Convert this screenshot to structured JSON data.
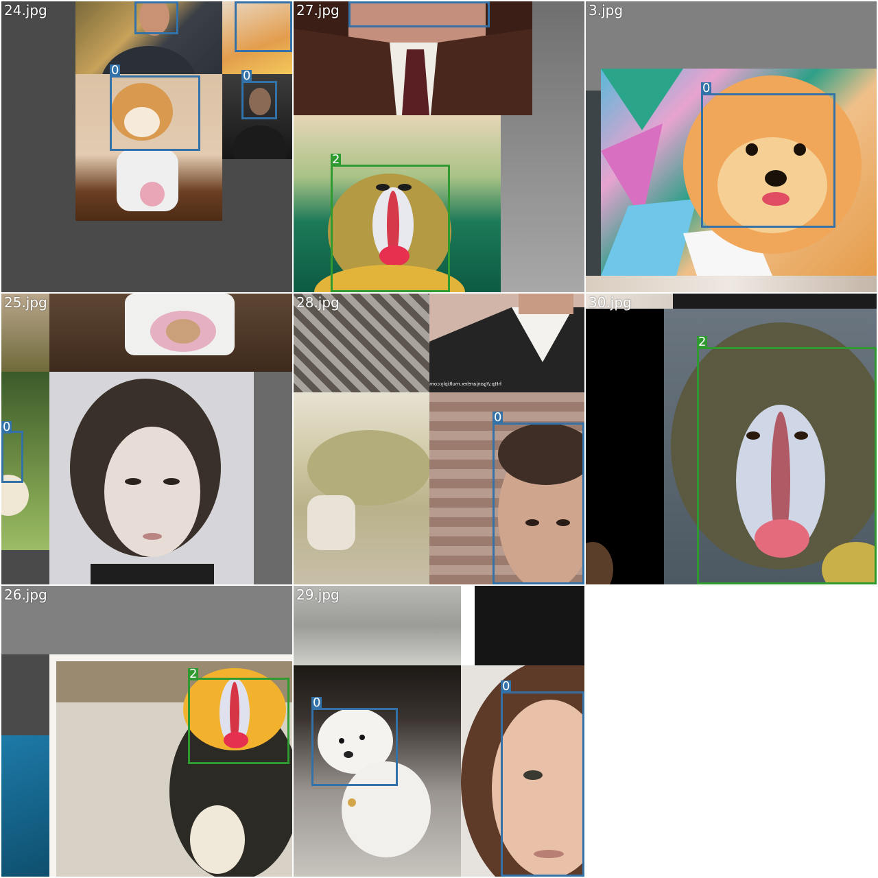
{
  "grid": {
    "tiles": [
      {
        "filename": "24.jpg"
      },
      {
        "filename": "27.jpg"
      },
      {
        "filename": "3.jpg"
      },
      {
        "filename": "25.jpg"
      },
      {
        "filename": "28.jpg"
      },
      {
        "filename": "30.jpg"
      },
      {
        "filename": "26.jpg"
      },
      {
        "filename": "29.jpg"
      }
    ]
  },
  "detections": {
    "class_ids": {
      "dog_or_person": "0",
      "monkey": "2"
    },
    "colors": {
      "class_0": "#3272a8",
      "class_2": "#2f9a2f"
    }
  },
  "watermark": {
    "text": "http://ganjarelex.multiply.com"
  }
}
